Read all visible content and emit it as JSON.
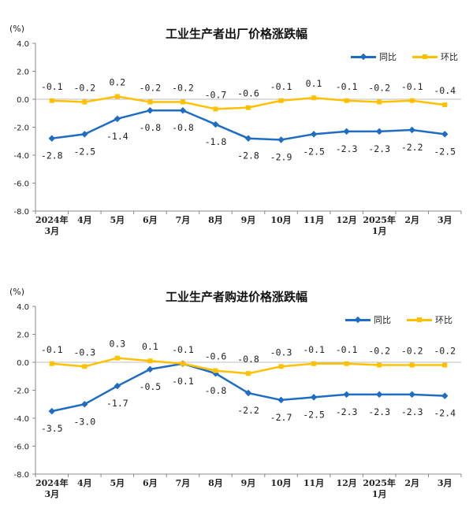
{
  "colors": {
    "yoy": "#1f6dc2",
    "mom": "#ffc000",
    "axis": "#888888",
    "text": "#222222"
  },
  "unit_label": "(%)",
  "legend": {
    "yoy": "同比",
    "mom": "环比"
  },
  "chart_data": [
    {
      "type": "line",
      "title": "工业生产者出厂价格涨跌幅",
      "categories": [
        "2024年\n3月",
        "4月",
        "5月",
        "6月",
        "7月",
        "8月",
        "9月",
        "10月",
        "11月",
        "12月",
        "2025年\n1月",
        "2月",
        "3月"
      ],
      "ylim": [
        -8.0,
        4.0
      ],
      "yticks": [
        "4.0",
        "2.0",
        "0.0",
        "-2.0",
        "-4.0",
        "-6.0",
        "-8.0"
      ],
      "grid": false,
      "legend_position": "top-right",
      "series": [
        {
          "name": "同比",
          "values": [
            -2.8,
            -2.5,
            -1.4,
            -0.8,
            -0.8,
            -1.8,
            -2.8,
            -2.9,
            -2.5,
            -2.3,
            -2.3,
            -2.2,
            -2.5
          ],
          "labels": [
            "-2.8",
            "-2.5",
            "-1.4",
            "-0.8",
            "-0.8",
            "-1.8",
            "-2.8",
            "-2.9",
            "-2.5",
            "-2.3",
            "-2.3",
            "-2.2",
            "-2.5"
          ]
        },
        {
          "name": "环比",
          "values": [
            -0.1,
            -0.2,
            0.2,
            -0.2,
            -0.2,
            -0.7,
            -0.6,
            -0.1,
            0.1,
            -0.1,
            -0.2,
            -0.1,
            -0.4
          ],
          "labels": [
            "-0.1",
            "-0.2",
            "0.2",
            "-0.2",
            "-0.2",
            "-0.7",
            "-0.6",
            "-0.1",
            "0.1",
            "-0.1",
            "-0.2",
            "-0.1",
            "-0.4"
          ]
        }
      ]
    },
    {
      "type": "line",
      "title": "工业生产者购进价格涨跌幅",
      "categories": [
        "2024年\n3月",
        "4月",
        "5月",
        "6月",
        "7月",
        "8月",
        "9月",
        "10月",
        "11月",
        "12月",
        "2025年\n1月",
        "2月",
        "3月"
      ],
      "ylim": [
        -8.0,
        4.0
      ],
      "yticks": [
        "4.0",
        "2.0",
        "0.0",
        "-2.0",
        "-4.0",
        "-6.0",
        "-8.0"
      ],
      "grid": false,
      "legend_position": "top-right",
      "series": [
        {
          "name": "同比",
          "values": [
            -3.5,
            -3.0,
            -1.7,
            -0.5,
            -0.1,
            -0.8,
            -2.2,
            -2.7,
            -2.5,
            -2.3,
            -2.3,
            -2.3,
            -2.4
          ],
          "labels": [
            "-3.5",
            "-3.0",
            "-1.7",
            "-0.5",
            "-0.1",
            "-0.8",
            "-2.2",
            "-2.7",
            "-2.5",
            "-2.3",
            "-2.3",
            "-2.3",
            "-2.4"
          ]
        },
        {
          "name": "环比",
          "values": [
            -0.1,
            -0.3,
            0.3,
            0.1,
            -0.1,
            -0.6,
            -0.8,
            -0.3,
            -0.1,
            -0.1,
            -0.2,
            -0.2,
            -0.2
          ],
          "labels": [
            "-0.1",
            "-0.3",
            "0.3",
            "0.1",
            "-0.1",
            "-0.6",
            "-0.8",
            "-0.3",
            "-0.1",
            "-0.1",
            "-0.2",
            "-0.2",
            "-0.2"
          ]
        }
      ]
    }
  ]
}
